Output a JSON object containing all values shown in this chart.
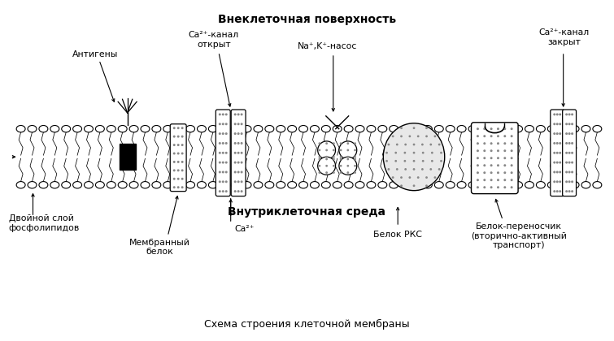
{
  "title": "Схема строения клеточной мембраны",
  "top_label": "Внеклеточная поверхность",
  "bottom_label": "Внутриклеточная среда",
  "bg_color": "#ffffff",
  "annotations": {
    "antigens": "Антигены",
    "ca_open": "Ca²⁺-канал\nоткрыт",
    "na_k_pump": "Na⁺,K⁺-насос",
    "ca_closed": "Ca²⁺-канал\nзакрыт",
    "double_layer": "Двойной слой\nфосфолипидов",
    "membrane_protein": "Мембранный\nбелок",
    "ca2plus": "Ca²⁺",
    "pkc_protein": "Белок РКС",
    "carrier_protein": "Белок-переносчик\n(вторично-активный\nтранспорт)"
  }
}
